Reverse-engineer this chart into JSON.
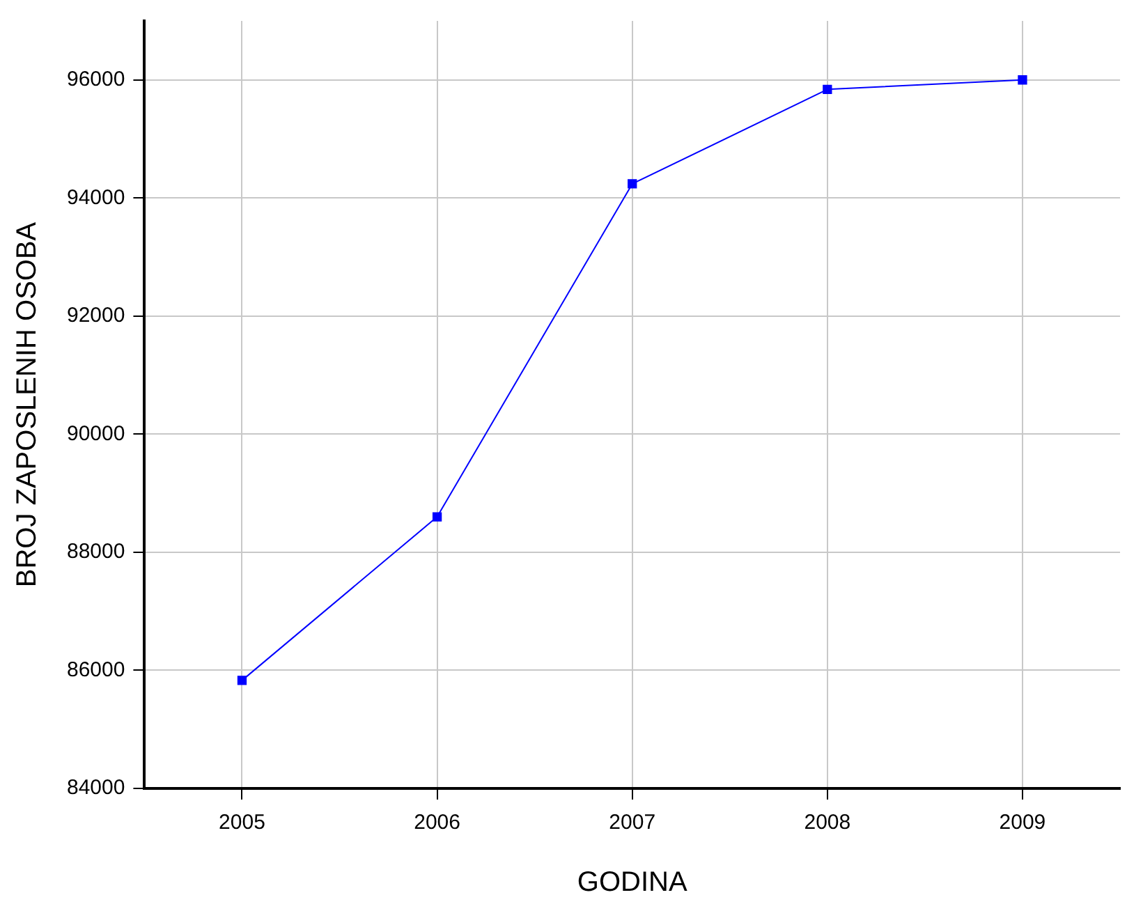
{
  "chart_data": {
    "type": "line",
    "xlabel": "GODINA",
    "ylabel": "BROJ ZAPOSLENIH OSOBA",
    "x": [
      2005,
      2006,
      2007,
      2008,
      2009
    ],
    "series": [
      {
        "color": "#0000ff",
        "values": [
          85830,
          88600,
          94240,
          95840,
          96000
        ]
      }
    ],
    "xlim": [
      2004.5,
      2009.5
    ],
    "xticks": [
      2005,
      2006,
      2007,
      2008,
      2009
    ],
    "ylim": [
      84000,
      97000
    ],
    "yticks": [
      84000,
      86000,
      88000,
      90000,
      92000,
      94000,
      96000
    ],
    "grid": true,
    "marker": "square",
    "line_style": "solid",
    "legend": false
  }
}
